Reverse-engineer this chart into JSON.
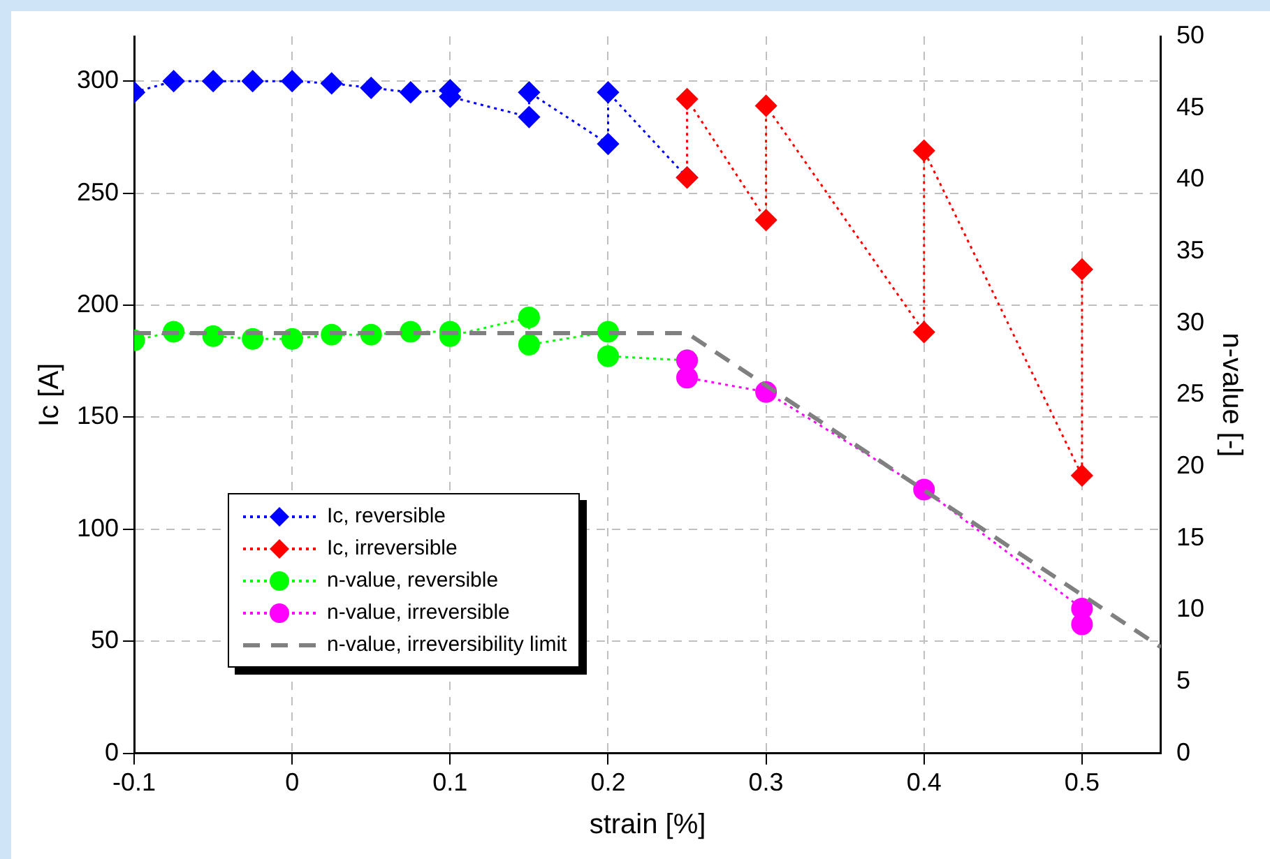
{
  "chart_data": {
    "type": "scatter",
    "xlabel": "strain [%]",
    "ylabel": "Ic [A]",
    "y2label": "n-value [-]",
    "xlim": [
      -0.1,
      0.55
    ],
    "xticks": [
      -0.1,
      0,
      0.1,
      0.2,
      0.3,
      0.4,
      0.5
    ],
    "ylim": [
      0,
      320
    ],
    "yticks": [
      0,
      50,
      100,
      150,
      200,
      250,
      300
    ],
    "y2lim": [
      0,
      50
    ],
    "y2ticks": [
      0,
      5,
      10,
      15,
      20,
      25,
      30,
      35,
      40,
      45,
      50
    ],
    "grid": true,
    "legend": "bottom left",
    "series": [
      {
        "name": "Ic, reversible",
        "type": "line",
        "marker": "diamond",
        "line_style": "dotted",
        "color": "#0000ff",
        "x": [
          -0.1,
          -0.075,
          -0.05,
          -0.025,
          0,
          0.025,
          0.05,
          0.075,
          0.1,
          0.1,
          0.15,
          0.15,
          0.2,
          0.2,
          0.25
        ],
        "values": [
          295,
          300,
          300,
          300,
          300,
          299,
          297,
          295,
          296,
          293,
          284,
          295,
          272,
          295,
          257
        ]
      },
      {
        "name": "Ic, irreversible",
        "type": "line",
        "marker": "diamond",
        "line_style": "dotted",
        "color": "#ff0000",
        "x": [
          0.25,
          0.25,
          0.3,
          0.3,
          0.4,
          0.4,
          0.5,
          0.5
        ],
        "values": [
          257,
          292,
          238,
          289,
          188,
          269,
          124,
          216
        ]
      },
      {
        "name": "n-value, reversible",
        "type": "line",
        "axis": "y2",
        "marker": "circle",
        "line_style": "dotted",
        "color": "#00ff00",
        "x": [
          -0.1,
          -0.075,
          -0.05,
          -0.025,
          0,
          0.025,
          0.05,
          0.075,
          0.1,
          0.1,
          0.15,
          0.15,
          0.2,
          0.2,
          0.25
        ],
        "values": [
          28.8,
          29.4,
          29.1,
          28.9,
          28.9,
          29.2,
          29.2,
          29.4,
          29.4,
          29.1,
          30.4,
          28.5,
          29.4,
          27.7,
          27.4
        ]
      },
      {
        "name": "n-value, irreversible",
        "type": "line",
        "axis": "y2",
        "marker": "circle",
        "line_style": "dotted",
        "color": "#ff00ff",
        "x": [
          0.25,
          0.25,
          0.3,
          0.4,
          0.5,
          0.5
        ],
        "values": [
          27.4,
          26.2,
          25.2,
          18.4,
          10.1,
          9.0
        ]
      },
      {
        "name": "n-value, irreversibility limit",
        "type": "line",
        "axis": "y2",
        "marker": "none",
        "line_style": "dashed",
        "color": "#808080",
        "x": [
          -0.1,
          0.25,
          0.55
        ],
        "values": [
          29.3,
          29.3,
          7.4
        ]
      }
    ]
  }
}
